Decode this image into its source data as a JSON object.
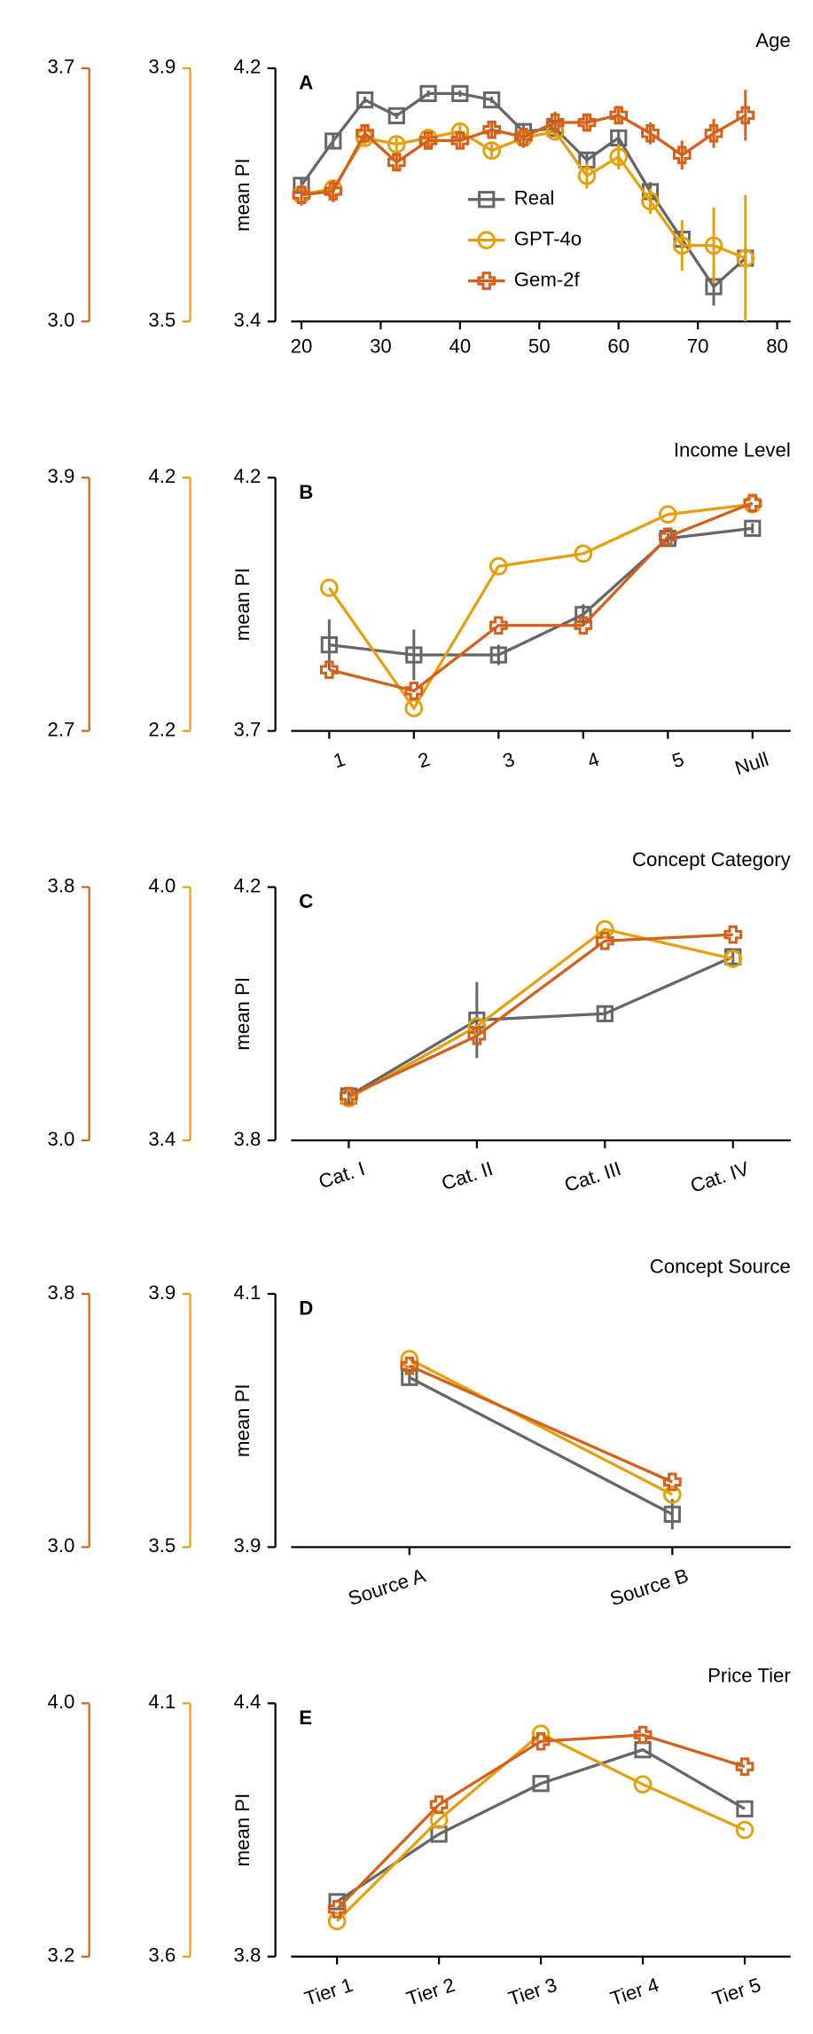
{
  "chart_data": [
    {
      "type": "line",
      "title": "Age",
      "panel_label": "A",
      "ylabel": "mean PI",
      "x": [
        20,
        24,
        28,
        32,
        36,
        40,
        44,
        48,
        52,
        56,
        60,
        64,
        68,
        72,
        76
      ],
      "xlim": [
        18.7,
        81.7
      ],
      "xticks": [
        20,
        30,
        40,
        50,
        60,
        70,
        80
      ],
      "ylim": [
        3.4,
        4.2
      ],
      "yticks": [
        3.4,
        {
          "value": 4.2,
          "label": "4.2"
        }
      ],
      "y2lim": [
        3.5,
        3.9
      ],
      "y2ticks": [
        3.5,
        3.9
      ],
      "y3lim": [
        3.0,
        3.7
      ],
      "y3ticks": [
        {
          "value": 3.0,
          "label": "3.0"
        },
        3.7
      ],
      "legend": "center",
      "series": [
        {
          "name": "Real",
          "color": "#666666",
          "marker": "square",
          "axis": "y",
          "values": [
            3.83,
            3.97,
            4.1,
            4.05,
            4.12,
            4.12,
            4.1,
            4.0,
            4.01,
            3.91,
            3.98,
            3.81,
            3.66,
            3.51,
            3.6
          ],
          "errors": [
            0.02,
            0.02,
            0.01,
            0.01,
            0.01,
            0.01,
            0.01,
            0.02,
            0.02,
            0.02,
            0.02,
            0.03,
            0.03,
            0.06,
            0.03
          ]
        },
        {
          "name": "GPT-4o",
          "color": "#e5a00d",
          "marker": "circle",
          "axis": "y2",
          "values": [
            3.7,
            3.71,
            3.79,
            3.78,
            3.79,
            3.8,
            3.77,
            3.79,
            3.8,
            3.73,
            3.76,
            3.69,
            3.62,
            3.62,
            3.6
          ],
          "errors": [
            0.01,
            0.01,
            0.01,
            0.01,
            0.01,
            0.01,
            0.01,
            0.01,
            0.01,
            0.02,
            0.02,
            0.02,
            0.04,
            0.06,
            0.1
          ]
        },
        {
          "name": "Gem-2f",
          "color": "#d4601a",
          "marker": "plus",
          "axis": "y3",
          "values": [
            3.35,
            3.36,
            3.52,
            3.44,
            3.5,
            3.5,
            3.53,
            3.51,
            3.55,
            3.55,
            3.57,
            3.52,
            3.46,
            3.52,
            3.57
          ],
          "errors": [
            0.03,
            0.03,
            0.02,
            0.02,
            0.02,
            0.02,
            0.02,
            0.03,
            0.03,
            0.02,
            0.02,
            0.03,
            0.04,
            0.04,
            0.07
          ]
        }
      ]
    },
    {
      "type": "line",
      "title": "Income Level",
      "panel_label": "B",
      "ylabel": "mean PI",
      "categories": [
        "1",
        "2",
        "3",
        "4",
        "5",
        "Null"
      ],
      "ylim": [
        3.7,
        4.2
      ],
      "yticks": [
        3.7,
        4.2
      ],
      "y2lim": [
        2.2,
        4.2
      ],
      "y2ticks": [
        2.2,
        4.2
      ],
      "y3lim": [
        2.7,
        3.9
      ],
      "y3ticks": [
        2.7,
        3.9
      ],
      "series": [
        {
          "name": "Real",
          "color": "#666666",
          "marker": "square",
          "axis": "y",
          "values": [
            3.87,
            3.85,
            3.85,
            3.93,
            4.08,
            4.1
          ],
          "errors": [
            0.05,
            0.05,
            0.02,
            0.02,
            0.01,
            0.01
          ]
        },
        {
          "name": "GPT-4o",
          "color": "#e5a00d",
          "marker": "circle",
          "axis": "y2",
          "values": [
            3.33,
            2.38,
            3.5,
            3.6,
            3.91,
            3.99
          ]
        },
        {
          "name": "Gem-2f",
          "color": "#d4601a",
          "marker": "plus",
          "axis": "y3",
          "values": [
            2.99,
            2.89,
            3.2,
            3.2,
            3.62,
            3.78
          ]
        }
      ]
    },
    {
      "type": "line",
      "title": "Concept Category",
      "panel_label": "C",
      "ylabel": "mean PI",
      "categories": [
        "Cat. I",
        "Cat. II",
        "Cat. III",
        "Cat. IV"
      ],
      "ylim": [
        3.8,
        4.2
      ],
      "yticks": [
        3.8,
        4.2
      ],
      "y2lim": [
        3.4,
        4.0
      ],
      "y2ticks": [
        3.4,
        {
          "value": 4.0,
          "label": "4.0"
        }
      ],
      "y3lim": [
        3.0,
        3.8
      ],
      "y3ticks": [
        {
          "value": 3.0,
          "label": "3.0"
        },
        3.8
      ],
      "series": [
        {
          "name": "Real",
          "color": "#666666",
          "marker": "square",
          "axis": "y",
          "values": [
            3.87,
            3.99,
            4.0,
            4.09
          ],
          "errors": [
            0.01,
            0.06,
            0.01,
            0.01
          ]
        },
        {
          "name": "GPT-4o",
          "color": "#e5a00d",
          "marker": "circle",
          "axis": "y2",
          "values": [
            3.5,
            3.67,
            3.9,
            3.83
          ]
        },
        {
          "name": "Gem-2f",
          "color": "#d4601a",
          "marker": "plus",
          "axis": "y3",
          "values": [
            3.14,
            3.33,
            3.63,
            3.65
          ]
        }
      ]
    },
    {
      "type": "line",
      "title": "Concept Source",
      "panel_label": "D",
      "ylabel": "mean PI",
      "categories": [
        "Source A",
        "Source B"
      ],
      "ylim": [
        3.9,
        4.1
      ],
      "yticks": [
        3.9,
        4.1
      ],
      "y2lim": [
        3.5,
        3.9
      ],
      "y2ticks": [
        3.5,
        3.9
      ],
      "y3lim": [
        3.0,
        3.8
      ],
      "y3ticks": [
        {
          "value": 3.0,
          "label": "3.0"
        },
        3.8
      ],
      "series": [
        {
          "name": "Real",
          "color": "#666666",
          "marker": "square",
          "axis": "y",
          "values": [
            4.034,
            3.926
          ],
          "errors": [
            0.005,
            0.012
          ]
        },
        {
          "name": "GPT-4o",
          "color": "#e5a00d",
          "marker": "circle",
          "axis": "y2",
          "values": [
            3.797,
            3.583
          ]
        },
        {
          "name": "Gem-2f",
          "color": "#d4601a",
          "marker": "plus",
          "axis": "y3",
          "values": [
            3.573,
            3.206
          ]
        }
      ]
    },
    {
      "type": "line",
      "title": "Price Tier",
      "panel_label": "E",
      "ylabel": "mean PI",
      "categories": [
        "Tier 1",
        "Tier 2",
        "Tier 3",
        "Tier 4",
        "Tier 5"
      ],
      "ylim": [
        3.8,
        4.4
      ],
      "yticks": [
        3.8,
        4.4
      ],
      "y2lim": [
        3.6,
        4.1
      ],
      "y2ticks": [
        3.6,
        4.1
      ],
      "y3lim": [
        3.2,
        4.0
      ],
      "y3ticks": [
        3.2,
        {
          "value": 4.0,
          "label": "4.0"
        }
      ],
      "series": [
        {
          "name": "Real",
          "color": "#666666",
          "marker": "square",
          "axis": "y",
          "values": [
            3.93,
            4.09,
            4.21,
            4.29,
            4.15
          ]
        },
        {
          "name": "GPT-4o",
          "color": "#e5a00d",
          "marker": "circle",
          "axis": "y2",
          "values": [
            3.67,
            3.87,
            4.04,
            3.94,
            3.85
          ]
        },
        {
          "name": "Gem-2f",
          "color": "#d4601a",
          "marker": "plus",
          "axis": "y3",
          "values": [
            3.35,
            3.68,
            3.88,
            3.9,
            3.8
          ]
        }
      ]
    }
  ]
}
